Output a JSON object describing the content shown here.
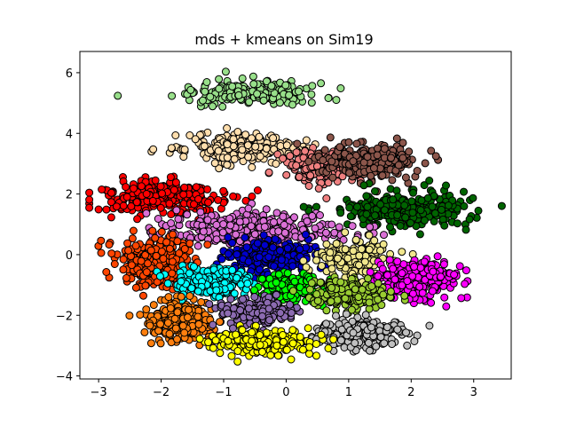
{
  "chart_data": {
    "type": "scatter",
    "title": "mds + kmeans on Sim19",
    "xlabel": "",
    "ylabel": "",
    "xlim": [
      -3.3,
      3.6
    ],
    "ylim": [
      -4.1,
      6.7
    ],
    "xticks": [
      -3,
      -2,
      -1,
      0,
      1,
      2,
      3
    ],
    "yticks": [
      -4,
      -2,
      0,
      2,
      4,
      6
    ],
    "grid": false,
    "legend": false,
    "marker_edge_color": "#000000",
    "series": [
      {
        "color": "#98df8a",
        "center": [
          -0.5,
          5.3
        ],
        "spread": [
          0.95,
          0.35
        ],
        "count": 190
      },
      {
        "color": "#ffdead",
        "center": [
          -0.7,
          3.5
        ],
        "spread": [
          0.85,
          0.45
        ],
        "count": 220
      },
      {
        "color": "#f08080",
        "center": [
          0.6,
          2.9
        ],
        "spread": [
          0.55,
          0.5
        ],
        "count": 220
      },
      {
        "color": "#8c564b",
        "center": [
          1.3,
          3.1
        ],
        "spread": [
          0.7,
          0.5
        ],
        "count": 240
      },
      {
        "color": "#ff0000",
        "center": [
          -2.0,
          1.9
        ],
        "spread": [
          0.9,
          0.45
        ],
        "count": 320
      },
      {
        "color": "#006400",
        "center": [
          1.9,
          1.5
        ],
        "spread": [
          0.9,
          0.55
        ],
        "count": 300
      },
      {
        "color": "#da70d6",
        "center": [
          -0.5,
          0.8
        ],
        "spread": [
          1.3,
          0.5
        ],
        "count": 340
      },
      {
        "color": "#ff4500",
        "center": [
          -2.1,
          -0.2
        ],
        "spread": [
          0.6,
          0.8
        ],
        "count": 260
      },
      {
        "color": "#0000cd",
        "center": [
          -0.2,
          -0.1
        ],
        "spread": [
          0.6,
          0.5
        ],
        "count": 220
      },
      {
        "color": "#f0e68c",
        "center": [
          1.1,
          -0.1
        ],
        "spread": [
          0.5,
          0.5
        ],
        "count": 200
      },
      {
        "color": "#ff00ff",
        "center": [
          2.1,
          -0.8
        ],
        "spread": [
          0.6,
          0.6
        ],
        "count": 260
      },
      {
        "color": "#00ffff",
        "center": [
          -1.2,
          -0.9
        ],
        "spread": [
          0.55,
          0.45
        ],
        "count": 210
      },
      {
        "color": "#00ff00",
        "center": [
          0.1,
          -1.1
        ],
        "spread": [
          0.45,
          0.45
        ],
        "count": 200
      },
      {
        "color": "#9acd32",
        "center": [
          1.0,
          -1.3
        ],
        "spread": [
          0.55,
          0.4
        ],
        "count": 210
      },
      {
        "color": "#ff7f0e",
        "center": [
          -1.7,
          -2.2
        ],
        "spread": [
          0.5,
          0.6
        ],
        "count": 260
      },
      {
        "color": "#8c6bb1",
        "center": [
          -0.5,
          -1.9
        ],
        "spread": [
          0.5,
          0.4
        ],
        "count": 200
      },
      {
        "color": "#c0c0c0",
        "center": [
          1.2,
          -2.6
        ],
        "spread": [
          0.6,
          0.4
        ],
        "count": 220
      },
      {
        "color": "#ffff00",
        "center": [
          -0.4,
          -2.9
        ],
        "spread": [
          0.7,
          0.35
        ],
        "count": 240
      }
    ]
  }
}
